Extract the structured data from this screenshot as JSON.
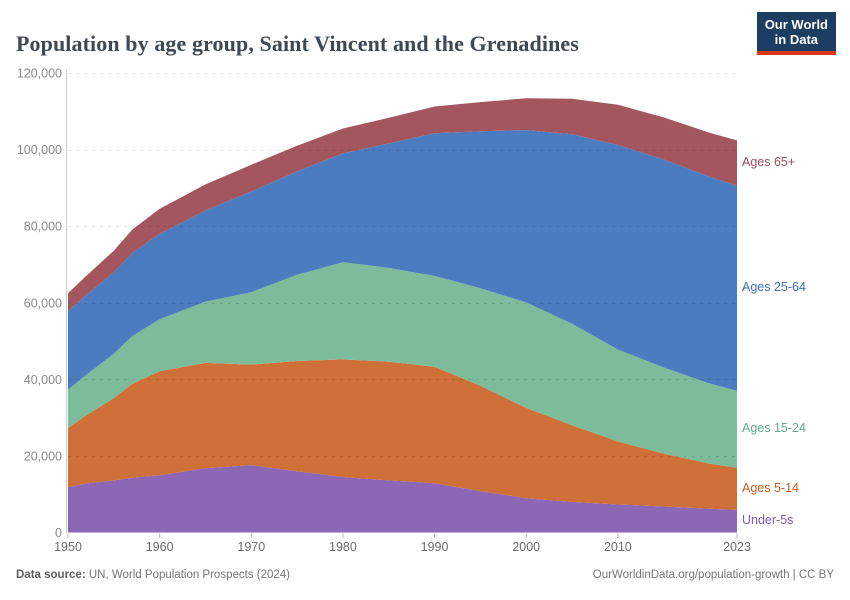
{
  "header": {
    "title": "Population by age group, Saint Vincent and the Grenadines",
    "logo_line1": "Our World",
    "logo_line2": "in Data",
    "logo_bg_color": "#1d3d63",
    "logo_bar_color": "#dc3714"
  },
  "footer": {
    "source_label": "Data source:",
    "source_text": " UN, World Population Prospects (2024)",
    "credit": "OurWorldinData.org/population-growth | CC BY"
  },
  "chart_data": {
    "type": "area",
    "stacked": true,
    "title": "Population by age group, Saint Vincent and the Grenadines",
    "xlabel": "",
    "ylabel": "",
    "xlim": [
      1950,
      2023
    ],
    "ylim": [
      0,
      120000
    ],
    "grid": "horizontal-dashed",
    "legend_position": "right",
    "x": [
      1950,
      1952,
      1955,
      1957,
      1960,
      1965,
      1970,
      1975,
      1980,
      1985,
      1990,
      1995,
      2000,
      2005,
      2010,
      2015,
      2020,
      2023
    ],
    "series": [
      {
        "name": "Under-5s",
        "color": "#8b67b5",
        "label_color": "#7a5bb0",
        "values": [
          11800,
          12800,
          13600,
          14300,
          14970,
          16800,
          17600,
          16000,
          14500,
          13600,
          12850,
          10800,
          8950,
          8000,
          7300,
          6800,
          6200,
          5900
        ]
      },
      {
        "name": "Ages 5-14",
        "color": "#ce7037",
        "label_color": "#c3601f",
        "values": [
          15500,
          17800,
          21500,
          24500,
          27130,
          27500,
          26250,
          28800,
          30700,
          31000,
          30450,
          27500,
          23600,
          20000,
          16500,
          13800,
          11800,
          11000
        ]
      },
      {
        "name": "Ages 15-24",
        "color": "#7cbc9b",
        "label_color": "#61ab88",
        "values": [
          10000,
          10600,
          11600,
          12500,
          13570,
          16000,
          18900,
          22500,
          25400,
          24500,
          23700,
          25500,
          27550,
          26500,
          24000,
          22500,
          20900,
          20100
        ]
      },
      {
        "name": "Ages 25-64",
        "color": "#4c7cc0",
        "label_color": "#3d6fb8",
        "values": [
          20550,
          20800,
          21300,
          21700,
          22300,
          23800,
          26300,
          27000,
          28400,
          32500,
          37250,
          41000,
          45000,
          49500,
          53400,
          54300,
          54000,
          53600
        ]
      },
      {
        "name": "Ages 65+",
        "color": "#a4565e",
        "label_color": "#9c4f58",
        "values": [
          4650,
          5000,
          5600,
          6100,
          6550,
          6800,
          7000,
          6700,
          6500,
          6700,
          7000,
          7600,
          8300,
          9300,
          10500,
          11000,
          11500,
          11800
        ]
      }
    ],
    "yticks": [
      0,
      20000,
      40000,
      60000,
      80000,
      100000,
      120000
    ],
    "ytick_labels": [
      "0",
      "20,000",
      "40,000",
      "60,000",
      "80,000",
      "100,000",
      "120,000"
    ],
    "xticks": [
      1950,
      1960,
      1970,
      1980,
      1990,
      2000,
      2010,
      2023
    ],
    "xtick_labels": [
      "1950",
      "1960",
      "1970",
      "1980",
      "1990",
      "2000",
      "2010",
      "2023"
    ]
  }
}
